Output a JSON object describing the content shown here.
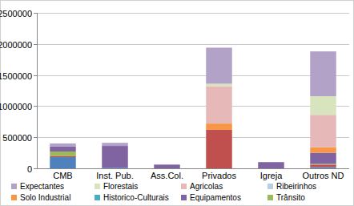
{
  "chart_data": {
    "type": "bar",
    "stacked": true,
    "grid": true,
    "legend": "bottom",
    "categories": [
      "CMB",
      "Inst. Pub.",
      "Ass.Col.",
      "Privados",
      "Igreja",
      "Outros ND"
    ],
    "ylim": [
      0,
      2500000
    ],
    "yticks": [
      0,
      500000,
      1000000,
      1500000,
      2000000,
      2500000
    ],
    "series": [
      {
        "name": null,
        "color": "#4f81bd",
        "values": [
          180000,
          10000,
          0,
          0,
          0,
          20000
        ]
      },
      {
        "name": null,
        "color": "#c0504d",
        "values": [
          20000,
          0,
          0,
          620000,
          0,
          40000
        ]
      },
      {
        "name": "Trânsito",
        "color": "#9bbb59",
        "values": [
          70000,
          0,
          0,
          0,
          0,
          10000
        ]
      },
      {
        "name": "Equipamentos",
        "color": "#8064a2",
        "values": [
          80000,
          350000,
          60000,
          0,
          100000,
          180000
        ]
      },
      {
        "name": "Historico-Culturais",
        "color": "#4bacc6",
        "values": [
          0,
          0,
          0,
          0,
          0,
          0
        ]
      },
      {
        "name": "Solo Industrial",
        "color": "#f79646",
        "values": [
          0,
          0,
          0,
          100000,
          0,
          90000
        ]
      },
      {
        "name": "Ribeirinhos",
        "color": "#b9cde5",
        "values": [
          0,
          0,
          0,
          0,
          0,
          0
        ]
      },
      {
        "name": "Agricolas",
        "color": "#e6b9b8",
        "values": [
          0,
          0,
          0,
          600000,
          0,
          520000
        ]
      },
      {
        "name": "Florestais",
        "color": "#d7e4bd",
        "values": [
          0,
          0,
          0,
          40000,
          0,
          300000
        ]
      },
      {
        "name": "Expectantes",
        "color": "#b3a2c7",
        "values": [
          50000,
          50000,
          0,
          580000,
          0,
          720000
        ]
      }
    ]
  }
}
